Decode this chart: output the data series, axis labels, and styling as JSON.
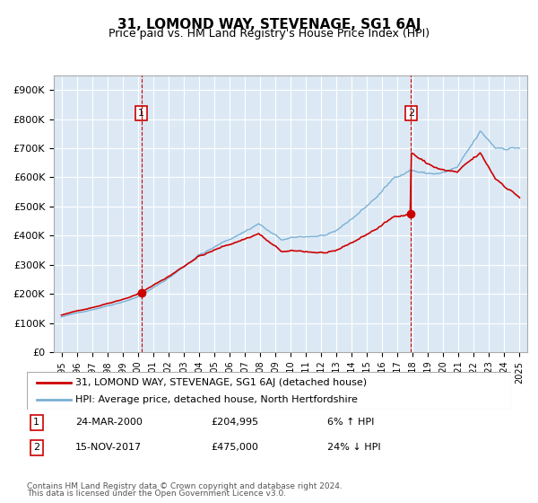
{
  "title": "31, LOMOND WAY, STEVENAGE, SG1 6AJ",
  "subtitle": "Price paid vs. HM Land Registry's House Price Index (HPI)",
  "legend_line1": "31, LOMOND WAY, STEVENAGE, SG1 6AJ (detached house)",
  "legend_line2": "HPI: Average price, detached house, North Hertfordshire",
  "annotation1_label": "1",
  "annotation1_date": "24-MAR-2000",
  "annotation1_price": "£204,995",
  "annotation1_hpi": "6% ↑ HPI",
  "annotation2_label": "2",
  "annotation2_date": "15-NOV-2017",
  "annotation2_price": "£475,000",
  "annotation2_hpi": "24% ↓ HPI",
  "footer1": "Contains HM Land Registry data © Crown copyright and database right 2024.",
  "footer2": "This data is licensed under the Open Government Licence v3.0.",
  "plot_bg_color": "#dce9f5",
  "red_line_color": "#cc0000",
  "blue_line_color": "#7ab0d4",
  "grid_color": "#ffffff",
  "marker_color": "#cc0000",
  "dashed_line_color": "#cc0000",
  "annotation_box_color": "#cc0000",
  "ylim": [
    0,
    950000
  ],
  "yticks": [
    0,
    100000,
    200000,
    300000,
    400000,
    500000,
    600000,
    700000,
    800000,
    900000
  ],
  "ytick_labels": [
    "£0",
    "£100K",
    "£200K",
    "£300K",
    "£400K",
    "£500K",
    "£600K",
    "£700K",
    "£800K",
    "£900K"
  ],
  "sale1_year": 2000.23,
  "sale1_value": 204995,
  "sale2_year": 2017.88,
  "sale2_value": 475000
}
